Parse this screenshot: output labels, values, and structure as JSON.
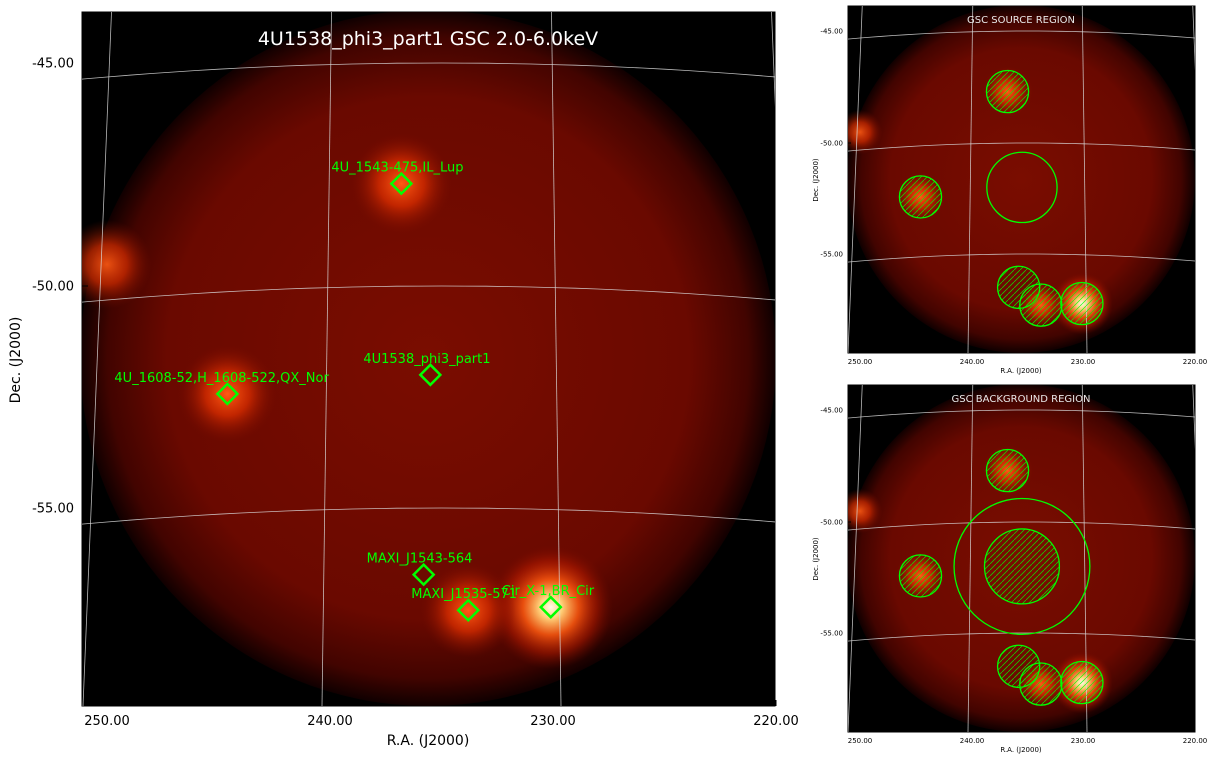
{
  "colors": {
    "marker": "#00ff00",
    "grid": "#d9d9d9",
    "title_main": "#ffffff",
    "panel_title": "#e8e8e8",
    "frame": "#000000",
    "colormap": "hot"
  },
  "chart_data": [
    {
      "type": "heatmap",
      "panel": "main",
      "title": "4U1538_phi3_part1 GSC 2.0-6.0keV",
      "xlabel": "R.A. (J2000)",
      "ylabel": "Dec. (J2000)",
      "x_ticks": [
        {
          "value": 250,
          "label": "250.00"
        },
        {
          "value": 240,
          "label": "240.00"
        },
        {
          "value": 230,
          "label": "230.00"
        },
        {
          "value": 220,
          "label": "220.00"
        }
      ],
      "y_ticks": [
        {
          "value": -45,
          "label": "-45.00"
        },
        {
          "value": -50,
          "label": "-50.00"
        },
        {
          "value": -55,
          "label": "-55.00"
        }
      ],
      "grid": true,
      "sources": [
        {
          "name": "4U_1543-475,IL_Lup",
          "ra": 236.8,
          "dec": -47.7
        },
        {
          "name": "4U1538_phi3_part1",
          "ra": 235.5,
          "dec": -52.0
        },
        {
          "name": "4U_1608-52,H_1608-522,QX_Nor",
          "ra": 244.6,
          "dec": -52.3
        },
        {
          "name": "MAXI_J1543-564",
          "ra": 235.8,
          "dec": -56.5
        },
        {
          "name": "MAXI_J1535-571",
          "ra": 233.8,
          "dec": -57.3
        },
        {
          "name": "Cir_X-1,BR_Cir",
          "ra": 230.1,
          "dec": -57.2
        }
      ],
      "hotspots": [
        {
          "ra": 230.1,
          "dec": -57.2,
          "strength": 1.0
        },
        {
          "ra": 233.8,
          "dec": -57.3,
          "strength": 0.45
        },
        {
          "ra": 236.8,
          "dec": -47.7,
          "strength": 0.55
        },
        {
          "ra": 244.6,
          "dec": -52.3,
          "strength": 0.5
        },
        {
          "ra": 250.0,
          "dec": -49.2,
          "strength": 0.35
        }
      ]
    },
    {
      "type": "heatmap",
      "panel": "source",
      "title": "GSC SOURCE REGION",
      "xlabel": "R.A. (J2000)",
      "ylabel": "Dec. (J2000)",
      "x_ticks": [
        {
          "value": 250,
          "label": "250.00"
        },
        {
          "value": 240,
          "label": "240.00"
        },
        {
          "value": 230,
          "label": "230.00"
        },
        {
          "value": 220,
          "label": "220.00"
        }
      ],
      "y_ticks": [
        {
          "value": -45,
          "label": "-45.00"
        },
        {
          "value": -50,
          "label": "-50.00"
        },
        {
          "value": -55,
          "label": "-55.00"
        }
      ],
      "regions": [
        {
          "role": "source",
          "ra": 235.5,
          "dec": -52.0,
          "radius_deg": 1.5,
          "hatched": false
        },
        {
          "role": "excluded",
          "ra": 236.8,
          "dec": -47.7,
          "radius_deg": 0.9,
          "hatched": true
        },
        {
          "role": "excluded",
          "ra": 244.6,
          "dec": -52.3,
          "radius_deg": 0.9,
          "hatched": true
        },
        {
          "role": "excluded",
          "ra": 235.8,
          "dec": -56.5,
          "radius_deg": 0.9,
          "hatched": true
        },
        {
          "role": "excluded",
          "ra": 233.8,
          "dec": -57.3,
          "radius_deg": 0.9,
          "hatched": true
        },
        {
          "role": "excluded",
          "ra": 230.1,
          "dec": -57.2,
          "radius_deg": 0.9,
          "hatched": true
        }
      ]
    },
    {
      "type": "heatmap",
      "panel": "background",
      "title": "GSC BACKGROUND REGION",
      "xlabel": "R.A. (J2000)",
      "ylabel": "Dec. (J2000)",
      "x_ticks": [
        {
          "value": 250,
          "label": "250.00"
        },
        {
          "value": 240,
          "label": "240.00"
        },
        {
          "value": 230,
          "label": "230.00"
        },
        {
          "value": 220,
          "label": "220.00"
        }
      ],
      "y_ticks": [
        {
          "value": -45,
          "label": "-45.00"
        },
        {
          "value": -50,
          "label": "-50.00"
        },
        {
          "value": -55,
          "label": "-55.00"
        }
      ],
      "regions": [
        {
          "role": "background",
          "ra": 235.5,
          "dec": -52.0,
          "radius_deg": 2.9,
          "hatched": false
        },
        {
          "role": "excluded",
          "ra": 235.5,
          "dec": -52.0,
          "radius_deg": 1.6,
          "hatched": true
        },
        {
          "role": "excluded",
          "ra": 236.8,
          "dec": -47.7,
          "radius_deg": 0.9,
          "hatched": true
        },
        {
          "role": "excluded",
          "ra": 244.6,
          "dec": -52.3,
          "radius_deg": 0.9,
          "hatched": true
        },
        {
          "role": "excluded",
          "ra": 235.8,
          "dec": -56.5,
          "radius_deg": 0.9,
          "hatched": true
        },
        {
          "role": "excluded",
          "ra": 233.8,
          "dec": -57.3,
          "radius_deg": 0.9,
          "hatched": true
        },
        {
          "role": "excluded",
          "ra": 230.1,
          "dec": -57.2,
          "radius_deg": 0.9,
          "hatched": true
        }
      ]
    }
  ]
}
